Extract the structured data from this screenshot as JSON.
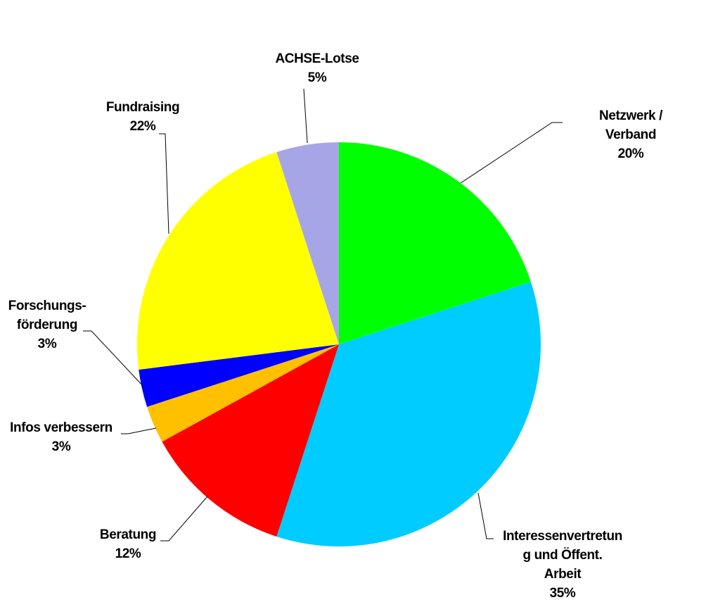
{
  "chart_data": {
    "type": "pie",
    "categories": [
      "Netzwerk / Verband",
      "Interessenvertretun\ng und Öffent.\nArbeit",
      "Beratung",
      "Infos verbessern",
      "Forschungs-\nförderung",
      "Fundraising",
      "ACHSE-Lotse"
    ],
    "values": [
      20,
      35,
      12,
      3,
      3,
      22,
      5
    ],
    "value_labels": [
      "20%",
      "35%",
      "12%",
      "3%",
      "3%",
      "22%",
      "5%"
    ],
    "colors": [
      "#00ff00",
      "#00ccff",
      "#ff0000",
      "#ffc000",
      "#0000ff",
      "#ffff00",
      "#a6a6e6"
    ]
  }
}
